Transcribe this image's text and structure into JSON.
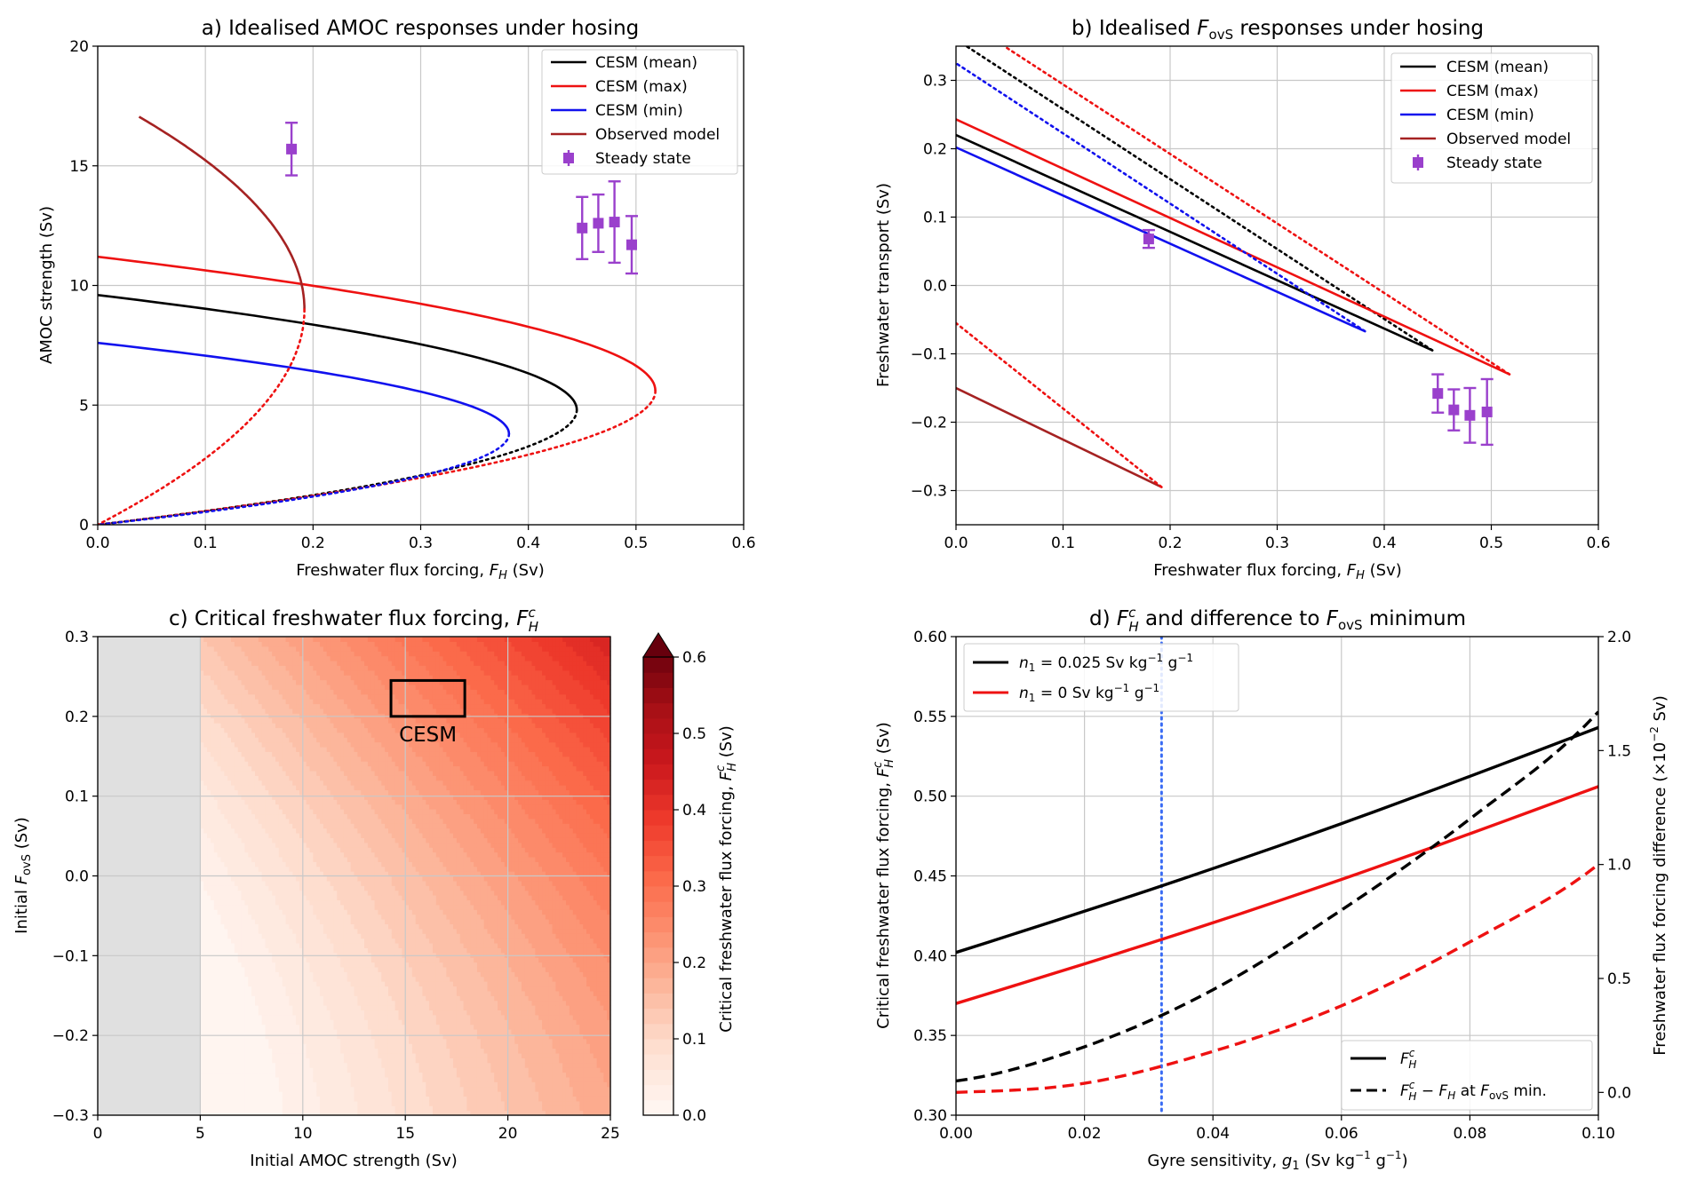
{
  "panels": {
    "a": {
      "title": "a) Idealised AMOC responses under hosing",
      "xlabel": "Freshwater flux forcing, F_H (Sv)",
      "ylabel": "AMOC strength (Sv)",
      "xticks": [
        "0.0",
        "0.1",
        "0.2",
        "0.3",
        "0.4",
        "0.5",
        "0.6"
      ],
      "yticks": [
        "0",
        "5",
        "10",
        "15",
        "20"
      ],
      "legend": [
        "CESM (mean)",
        "CESM (max)",
        "CESM (min)",
        "Observed model",
        "Steady state"
      ]
    },
    "b": {
      "title": "b) Idealised F_ovS responses under hosing",
      "xlabel": "Freshwater flux forcing, F_H (Sv)",
      "ylabel": "Freshwater transport (Sv)",
      "xticks": [
        "0.0",
        "0.1",
        "0.2",
        "0.3",
        "0.4",
        "0.5",
        "0.6"
      ],
      "yticks": [
        "0.3",
        "0.2",
        "0.1",
        "0.0",
        "−0.1",
        "−0.2",
        "−0.3"
      ],
      "legend": [
        "CESM (mean)",
        "CESM (max)",
        "CESM (min)",
        "Observed model",
        "Steady state"
      ]
    },
    "c": {
      "title": "c) Critical freshwater flux forcing, F_H^c",
      "xlabel": "Initial AMOC strength (Sv)",
      "ylabel": "Initial F_ovS (Sv)",
      "xticks": [
        "0",
        "5",
        "10",
        "15",
        "20",
        "25"
      ],
      "yticks": [
        "0.3",
        "0.2",
        "0.1",
        "0.0",
        "−0.1",
        "−0.2",
        "−0.3"
      ],
      "box_label": "CESM",
      "colorbar_label": "Critical freshwater flux forcing, F_H^c (Sv)",
      "colorbar_ticks": [
        "0.6",
        "0.5",
        "0.4",
        "0.3",
        "0.2",
        "0.1",
        "0.0"
      ]
    },
    "d": {
      "title": "d) F_H^c and difference to F_ovS minimum",
      "xlabel": "Gyre sensitivity, g_1 (Sv kg⁻¹ g⁻¹)",
      "ylabel_left": "Critical freshwater flux forcing, F_H^c (Sv)",
      "ylabel_right": "Freshwater flux forcing difference (×10⁻² Sv)",
      "xticks": [
        "0.00",
        "0.02",
        "0.04",
        "0.06",
        "0.08",
        "0.10"
      ],
      "yticks_left": [
        "0.60",
        "0.55",
        "0.50",
        "0.45",
        "0.40",
        "0.35",
        "0.30"
      ],
      "yticks_right": [
        "2.0",
        "1.5",
        "1.0",
        "0.5",
        "0.0"
      ],
      "legend_top": [
        "n_1 = 0.025 Sv kg⁻¹ g⁻¹",
        "n_1 = 0 Sv kg⁻¹ g⁻¹"
      ],
      "legend_bottom": [
        "F_H^c",
        "F_H^c − F_H at F_ovS min."
      ]
    }
  },
  "colors": {
    "mean": "#000000",
    "max": "#ee1111",
    "min": "#1111ee",
    "observed": "#a52222",
    "steady": "#9a40cc",
    "vline": "#3a6cf4",
    "nodata": "#e0e0e0"
  },
  "chart_data": [
    {
      "id": "a",
      "type": "line",
      "xlim": [
        0,
        0.6
      ],
      "ylim": [
        0,
        20
      ],
      "grid": true,
      "legend_position": "top-right",
      "series": [
        {
          "name": "CESM (mean)",
          "F0": 0.445,
          "a0": 16.05,
          "m_star": 4.8
        },
        {
          "name": "CESM (max)",
          "F0": 0.518,
          "a0": 17.85,
          "m_star": 5.6
        },
        {
          "name": "CESM (min)",
          "F0": 0.382,
          "a0": 14.3,
          "m_star": 3.8
        },
        {
          "name": "Observed model",
          "F0": 0.192,
          "a0": 17.05,
          "m_star": 9.0
        },
        {
          "name": "Steady state",
          "points": [
            {
              "x": 0.18,
              "y": 15.7,
              "err": 1.1
            },
            {
              "x": 0.45,
              "y": 12.4,
              "err": 1.3
            },
            {
              "x": 0.465,
              "y": 12.6,
              "err": 1.2
            },
            {
              "x": 0.48,
              "y": 12.65,
              "err": 1.7
            },
            {
              "x": 0.496,
              "y": 11.7,
              "err": 1.2
            }
          ]
        }
      ]
    },
    {
      "id": "b",
      "type": "line",
      "xlim": [
        0,
        0.6
      ],
      "ylim": [
        -0.35,
        0.35
      ],
      "grid": true,
      "legend_position": "top-right",
      "series": [
        {
          "name": "CESM (mean)",
          "stable": [
            [
              0.0,
              0.22
            ],
            [
              0.445,
              -0.095
            ]
          ],
          "unstable": [
            [
              0.445,
              -0.095
            ],
            [
              0.0,
              0.36
            ]
          ]
        },
        {
          "name": "CESM (max)",
          "stable": [
            [
              0.0,
              0.243
            ],
            [
              0.517,
              -0.13
            ]
          ],
          "unstable": [
            [
              0.517,
              -0.13
            ],
            [
              0.045,
              0.35
            ]
          ]
        },
        {
          "name": "CESM (min)",
          "stable": [
            [
              0.0,
              0.202
            ],
            [
              0.382,
              -0.067
            ]
          ],
          "unstable": [
            [
              0.382,
              -0.067
            ],
            [
              0.0,
              0.325
            ]
          ]
        },
        {
          "name": "Observed model",
          "stable": [
            [
              0.0,
              -0.15
            ],
            [
              0.192,
              -0.295
            ]
          ],
          "unstable": [
            [
              0.192,
              -0.295
            ],
            [
              0.0,
              -0.055
            ]
          ]
        },
        {
          "name": "Steady state",
          "points": [
            {
              "x": 0.18,
              "y": 0.068,
              "err": 0.013
            },
            {
              "x": 0.45,
              "y": -0.158,
              "err": 0.028
            },
            {
              "x": 0.465,
              "y": -0.182,
              "err": 0.03
            },
            {
              "x": 0.48,
              "y": -0.19,
              "err": 0.04
            },
            {
              "x": 0.496,
              "y": -0.185,
              "err": 0.048
            }
          ]
        }
      ]
    },
    {
      "id": "c",
      "type": "heatmap",
      "xlim": [
        0,
        25
      ],
      "ylim": [
        -0.3,
        0.3
      ],
      "clim": [
        0,
        0.6
      ],
      "colorbar_extend": "max",
      "no_data_below_x": 5,
      "cesm_box": {
        "x": [
          14.3,
          17.9
        ],
        "y": [
          0.2,
          0.245
        ]
      }
    },
    {
      "id": "d",
      "type": "line",
      "xlim": [
        0,
        0.1
      ],
      "ylim_left": [
        0.3,
        0.6
      ],
      "ylim_right": [
        -0.1,
        2.0
      ],
      "grid": true,
      "vline_x": 0.032,
      "series": [
        {
          "name": "n_1 = 0.025 Sv kg⁻¹ g⁻¹",
          "axis": "left",
          "x": [
            0.0,
            0.1
          ],
          "y": [
            0.402,
            0.543
          ]
        },
        {
          "name": "n_1 = 0 Sv kg⁻¹ g⁻¹",
          "axis": "left",
          "x": [
            0.0,
            0.1
          ],
          "y": [
            0.37,
            0.506
          ]
        },
        {
          "name": "F_H^c − F_H at F_ovS min. (n_1 = 0.025)",
          "axis": "right",
          "x": [
            0.0,
            0.02,
            0.04,
            0.06,
            0.08,
            0.1
          ],
          "y": [
            0.05,
            0.2,
            0.45,
            0.8,
            1.2,
            1.67
          ]
        },
        {
          "name": "F_H^c − F_H at F_ovS min. (n_1 = 0)",
          "axis": "right",
          "x": [
            0.0,
            0.02,
            0.04,
            0.06,
            0.08,
            0.1
          ],
          "y": [
            0.0,
            0.04,
            0.18,
            0.38,
            0.66,
            1.0
          ]
        }
      ]
    }
  ]
}
